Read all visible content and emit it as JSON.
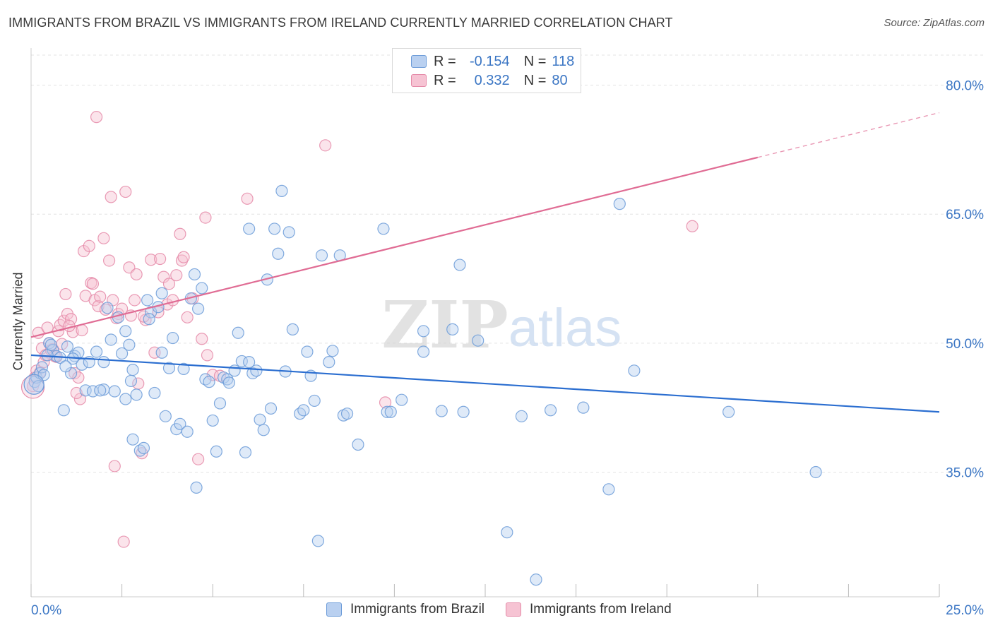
{
  "title": "IMMIGRANTS FROM BRAZIL VS IMMIGRANTS FROM IRELAND CURRENTLY MARRIED CORRELATION CHART",
  "source": "Source: ZipAtlas.com",
  "watermark": {
    "zip": "ZIP",
    "atlas": "atlas"
  },
  "legend": {
    "rows": [
      {
        "r_label": "R =",
        "r_value": "-0.154",
        "n_label": "N =",
        "n_value": "118"
      },
      {
        "r_label": "R =",
        "r_value": "0.332",
        "n_label": "N =",
        "n_value": "80"
      }
    ]
  },
  "colors": {
    "brazil": "#6b9bd8",
    "brazil_fill": "#b9d0f0",
    "brazil_line": "#2b6ed0",
    "ireland": "#e58aa8",
    "ireland_fill": "#f6c3d3",
    "ireland_line": "#e06c94",
    "axis_text": "#3b76c4",
    "grid": "#e3e3e3"
  },
  "chart_data": {
    "type": "scatter",
    "title": "IMMIGRANTS FROM BRAZIL VS IMMIGRANTS FROM IRELAND CURRENTLY MARRIED CORRELATION CHART",
    "xlabel": "",
    "ylabel": "Currently Married",
    "xlim": [
      0,
      25
    ],
    "ylim": [
      20.5,
      83.5
    ],
    "x_tick_labels": [
      "0.0%",
      "25.0%"
    ],
    "y_ticks": [
      35,
      50,
      65,
      80
    ],
    "y_tick_labels": [
      "35.0%",
      "50.0%",
      "65.0%",
      "80.0%"
    ],
    "grid": true,
    "legend_position": "top-center",
    "series": [
      {
        "name": "Immigrants from Brazil",
        "r": -0.154,
        "n": 118,
        "trend": {
          "x": [
            0,
            25
          ],
          "y": [
            48.6,
            42.0
          ]
        },
        "points": [
          [
            0.1,
            45.5
          ],
          [
            0.15,
            46.0
          ],
          [
            0.2,
            45.0
          ],
          [
            0.25,
            46.5
          ],
          [
            0.3,
            47.2
          ],
          [
            0.35,
            46.3
          ],
          [
            0.5,
            50.0
          ],
          [
            0.6,
            49.2
          ],
          [
            0.7,
            48.5
          ],
          [
            0.8,
            48.3
          ],
          [
            0.9,
            42.2
          ],
          [
            1.0,
            49.6
          ],
          [
            1.1,
            46.5
          ],
          [
            1.2,
            48.5
          ],
          [
            1.3,
            48.9
          ],
          [
            1.4,
            47.5
          ],
          [
            1.5,
            44.5
          ],
          [
            1.6,
            47.8
          ],
          [
            1.7,
            44.4
          ],
          [
            1.8,
            49.0
          ],
          [
            2.0,
            47.8
          ],
          [
            2.0,
            44.6
          ],
          [
            2.1,
            54.1
          ],
          [
            2.2,
            50.4
          ],
          [
            2.3,
            44.4
          ],
          [
            2.4,
            53.0
          ],
          [
            2.5,
            48.8
          ],
          [
            2.6,
            51.4
          ],
          [
            2.6,
            43.5
          ],
          [
            2.7,
            49.8
          ],
          [
            2.8,
            38.8
          ],
          [
            2.8,
            46.9
          ],
          [
            2.9,
            44.0
          ],
          [
            3.0,
            37.5
          ],
          [
            3.1,
            37.8
          ],
          [
            3.2,
            55.0
          ],
          [
            3.3,
            53.6
          ],
          [
            3.4,
            44.2
          ],
          [
            3.5,
            54.2
          ],
          [
            3.6,
            55.8
          ],
          [
            3.6,
            48.9
          ],
          [
            3.7,
            41.5
          ],
          [
            3.8,
            47.1
          ],
          [
            3.9,
            50.6
          ],
          [
            4.0,
            40.0
          ],
          [
            4.1,
            40.6
          ],
          [
            4.2,
            47.0
          ],
          [
            4.3,
            39.7
          ],
          [
            4.4,
            55.2
          ],
          [
            4.5,
            58.0
          ],
          [
            4.6,
            54.0
          ],
          [
            4.7,
            56.4
          ],
          [
            4.8,
            45.8
          ],
          [
            4.9,
            45.5
          ],
          [
            5.0,
            41.0
          ],
          [
            5.1,
            37.4
          ],
          [
            5.2,
            43.0
          ],
          [
            5.3,
            46.0
          ],
          [
            5.4,
            45.8
          ],
          [
            5.6,
            46.8
          ],
          [
            5.7,
            51.2
          ],
          [
            5.8,
            47.9
          ],
          [
            5.9,
            37.3
          ],
          [
            6.0,
            47.8
          ],
          [
            6.0,
            63.3
          ],
          [
            6.1,
            46.5
          ],
          [
            6.3,
            41.1
          ],
          [
            6.4,
            39.9
          ],
          [
            6.5,
            57.4
          ],
          [
            6.6,
            42.4
          ],
          [
            6.7,
            63.3
          ],
          [
            6.8,
            60.4
          ],
          [
            6.9,
            67.7
          ],
          [
            7.0,
            46.7
          ],
          [
            7.1,
            62.9
          ],
          [
            7.2,
            51.6
          ],
          [
            7.4,
            41.8
          ],
          [
            7.5,
            42.2
          ],
          [
            7.6,
            49.0
          ],
          [
            7.7,
            46.2
          ],
          [
            7.8,
            43.3
          ],
          [
            7.9,
            27.0
          ],
          [
            8.0,
            60.2
          ],
          [
            8.2,
            47.8
          ],
          [
            8.3,
            49.1
          ],
          [
            8.5,
            60.2
          ],
          [
            8.6,
            41.6
          ],
          [
            8.7,
            41.8
          ],
          [
            9.0,
            38.2
          ],
          [
            9.8,
            42.0
          ],
          [
            9.9,
            42.0
          ],
          [
            9.7,
            63.3
          ],
          [
            10.2,
            43.4
          ],
          [
            10.8,
            51.4
          ],
          [
            10.8,
            49.0
          ],
          [
            11.3,
            42.1
          ],
          [
            11.6,
            51.6
          ],
          [
            11.8,
            59.1
          ],
          [
            11.9,
            42.0
          ],
          [
            12.3,
            50.3
          ],
          [
            13.1,
            28.0
          ],
          [
            13.5,
            41.5
          ],
          [
            13.9,
            22.5
          ],
          [
            14.3,
            42.2
          ],
          [
            15.2,
            42.5
          ],
          [
            15.9,
            33.0
          ],
          [
            16.2,
            66.2
          ],
          [
            16.6,
            46.8
          ],
          [
            19.2,
            42.0
          ],
          [
            21.6,
            35.0
          ],
          [
            0.45,
            48.6
          ],
          [
            1.15,
            48.2
          ],
          [
            0.55,
            49.8
          ],
          [
            3.25,
            52.8
          ],
          [
            5.45,
            45.4
          ],
          [
            2.75,
            45.6
          ],
          [
            4.55,
            33.2
          ],
          [
            0.95,
            47.3
          ],
          [
            6.2,
            46.8
          ],
          [
            1.9,
            44.5
          ]
        ]
      },
      {
        "name": "Immigrants from Ireland",
        "r": 0.332,
        "n": 80,
        "trend": {
          "x": [
            0,
            20
          ],
          "y": [
            50.7,
            71.6
          ],
          "dashed_to": {
            "x": 25,
            "y": 76.8
          }
        },
        "points": [
          [
            0.05,
            45.0
          ],
          [
            0.1,
            46.0
          ],
          [
            0.15,
            46.8
          ],
          [
            0.2,
            51.2
          ],
          [
            0.3,
            49.4
          ],
          [
            0.35,
            47.8
          ],
          [
            0.4,
            48.6
          ],
          [
            0.45,
            51.8
          ],
          [
            0.5,
            50.0
          ],
          [
            0.55,
            49.2
          ],
          [
            0.6,
            49.3
          ],
          [
            0.7,
            48.4
          ],
          [
            0.75,
            51.4
          ],
          [
            0.8,
            52.1
          ],
          [
            0.9,
            52.6
          ],
          [
            0.95,
            55.7
          ],
          [
            1.0,
            53.4
          ],
          [
            1.1,
            52.8
          ],
          [
            1.15,
            51.3
          ],
          [
            1.2,
            46.5
          ],
          [
            1.3,
            46.0
          ],
          [
            1.35,
            43.5
          ],
          [
            1.4,
            51.5
          ],
          [
            1.45,
            60.7
          ],
          [
            1.5,
            55.5
          ],
          [
            1.6,
            61.3
          ],
          [
            1.65,
            57.0
          ],
          [
            1.7,
            56.9
          ],
          [
            1.75,
            55.0
          ],
          [
            1.8,
            76.3
          ],
          [
            1.85,
            54.3
          ],
          [
            1.9,
            55.4
          ],
          [
            2.0,
            62.2
          ],
          [
            2.05,
            53.9
          ],
          [
            2.15,
            59.6
          ],
          [
            2.2,
            67.0
          ],
          [
            2.25,
            55.0
          ],
          [
            2.3,
            35.7
          ],
          [
            2.4,
            53.4
          ],
          [
            2.5,
            54.0
          ],
          [
            2.55,
            26.9
          ],
          [
            2.6,
            67.6
          ],
          [
            2.7,
            58.8
          ],
          [
            2.75,
            53.2
          ],
          [
            2.85,
            55.0
          ],
          [
            2.9,
            58.0
          ],
          [
            2.95,
            45.3
          ],
          [
            3.05,
            37.2
          ],
          [
            3.15,
            52.7
          ],
          [
            3.3,
            59.7
          ],
          [
            3.4,
            48.9
          ],
          [
            3.5,
            53.6
          ],
          [
            3.55,
            59.8
          ],
          [
            3.65,
            57.7
          ],
          [
            3.75,
            54.5
          ],
          [
            3.8,
            56.9
          ],
          [
            3.9,
            55.0
          ],
          [
            4.0,
            57.9
          ],
          [
            4.1,
            62.7
          ],
          [
            4.15,
            59.6
          ],
          [
            4.2,
            60.0
          ],
          [
            4.3,
            53.0
          ],
          [
            4.45,
            55.2
          ],
          [
            4.6,
            36.5
          ],
          [
            4.7,
            50.5
          ],
          [
            4.8,
            64.6
          ],
          [
            4.85,
            48.6
          ],
          [
            5.0,
            46.3
          ],
          [
            5.2,
            46.2
          ],
          [
            5.95,
            66.8
          ],
          [
            8.1,
            73.0
          ],
          [
            9.75,
            43.1
          ],
          [
            18.2,
            63.6
          ],
          [
            0.25,
            46.6
          ],
          [
            0.65,
            48.5
          ],
          [
            1.05,
            52.0
          ],
          [
            1.25,
            44.2
          ],
          [
            2.35,
            52.9
          ],
          [
            3.1,
            53.1
          ],
          [
            0.85,
            49.9
          ]
        ]
      }
    ]
  },
  "bottom_legend": [
    "Immigrants from Brazil",
    "Immigrants from Ireland"
  ]
}
